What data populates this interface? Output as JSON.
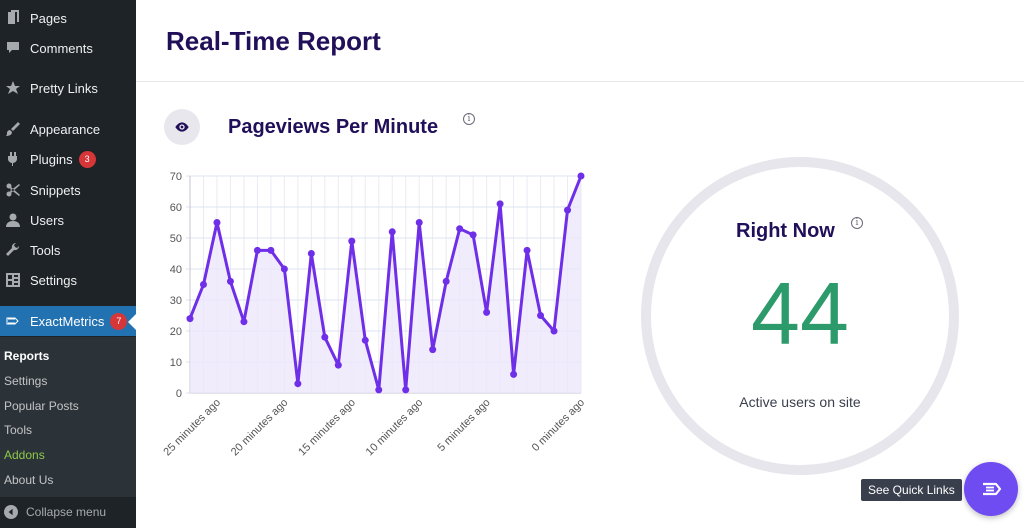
{
  "sidebar": {
    "items": [
      {
        "name": "sidebar-item-pages",
        "label": "Pages",
        "icon": "pages-icon"
      },
      {
        "name": "sidebar-item-comments",
        "label": "Comments",
        "icon": "comments-icon"
      },
      {
        "name": "sidebar-item-pretty-links",
        "label": "Pretty Links",
        "icon": "star-icon"
      },
      {
        "name": "sidebar-item-appearance",
        "label": "Appearance",
        "icon": "brush-icon"
      },
      {
        "name": "sidebar-item-plugins",
        "label": "Plugins",
        "icon": "plugin-icon",
        "badge": "3"
      },
      {
        "name": "sidebar-item-snippets",
        "label": "Snippets",
        "icon": "scissors-icon"
      },
      {
        "name": "sidebar-item-users",
        "label": "Users",
        "icon": "user-icon"
      },
      {
        "name": "sidebar-item-tools",
        "label": "Tools",
        "icon": "wrench-icon"
      },
      {
        "name": "sidebar-item-settings",
        "label": "Settings",
        "icon": "settings-icon"
      },
      {
        "name": "sidebar-item-exactmetrics",
        "label": "ExactMetrics",
        "icon": "exactmetrics-icon",
        "badge": "7"
      }
    ],
    "submenu": [
      "Reports",
      "Settings",
      "Popular Posts",
      "Tools",
      "Addons",
      "About Us"
    ],
    "collapse_label": "Collapse menu"
  },
  "page": {
    "title": "Real-Time Report",
    "chart_title": "Pageviews Per Minute",
    "info_glyph": "i"
  },
  "right_now": {
    "title": "Right Now",
    "value": "44",
    "subtitle": "Active users on site"
  },
  "quick_links": {
    "label": "See Quick Links"
  },
  "colors": {
    "sidebar_bg": "#1d2327",
    "active_menu": "#2271b1",
    "title": "#210f59",
    "line": "#6f2ee8",
    "fill": "#ece7fb",
    "big_number": "#2c9a6b",
    "badge": "#d63638",
    "quick_button": "#6f4bf2"
  },
  "chart_data": {
    "type": "line",
    "ylim": [
      0,
      70
    ],
    "yticks": [
      0,
      10,
      20,
      30,
      40,
      50,
      60,
      70
    ],
    "xtick_labels": [
      "25 minutes ago",
      "20 minutes ago",
      "15 minutes ago",
      "10 minutes ago",
      "5 minutes ago",
      "0 minutes ago"
    ],
    "xtick_index": [
      2,
      7,
      12,
      17,
      22,
      29
    ],
    "series": [
      {
        "values": [
          24,
          35,
          55,
          36,
          23,
          46,
          46,
          40,
          3,
          45,
          18,
          9,
          49,
          17,
          1,
          52,
          1,
          55,
          14,
          36,
          53,
          51,
          26,
          61,
          6,
          46,
          25,
          20,
          59,
          70
        ]
      }
    ],
    "grid": true
  }
}
